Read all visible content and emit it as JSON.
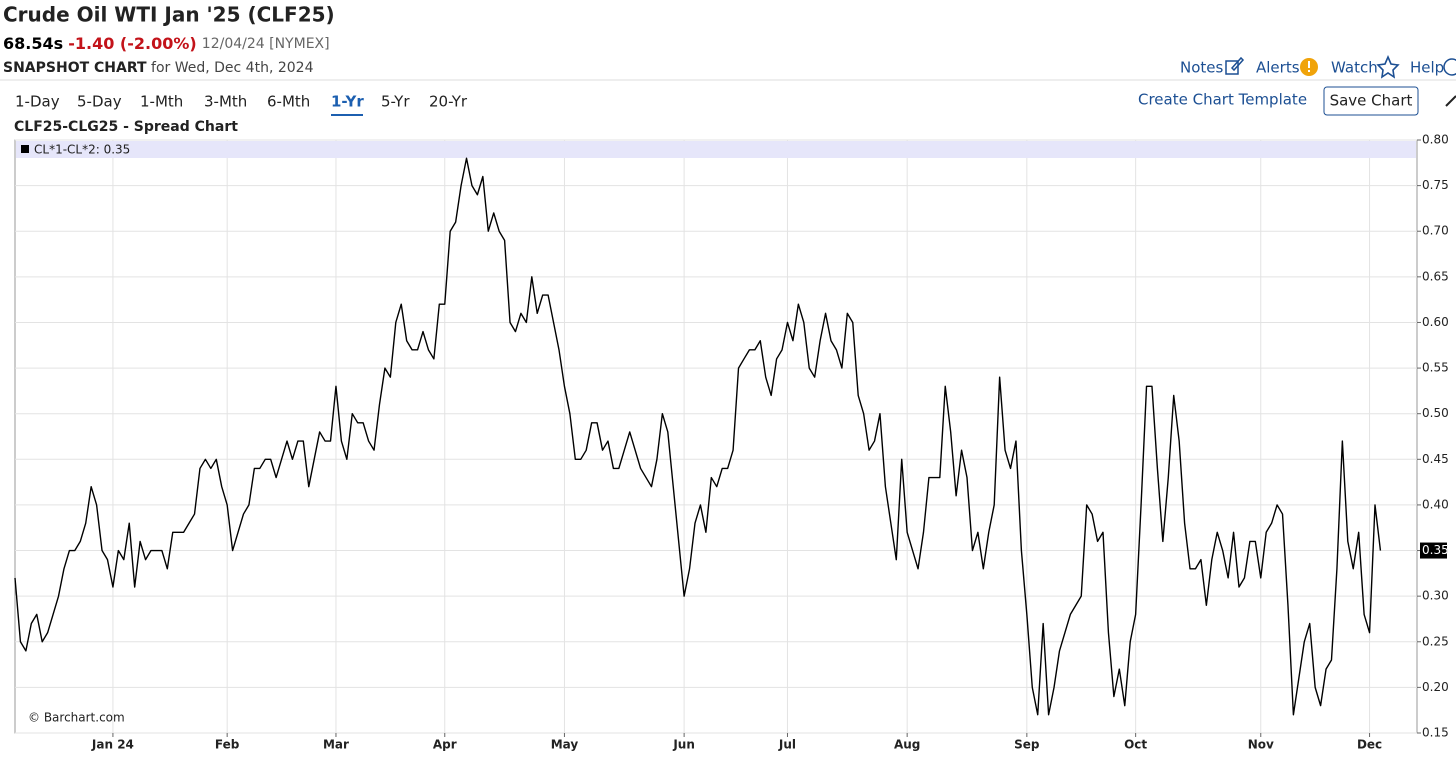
{
  "header": {
    "title": "Crude Oil WTI Jan '25 (CLF25)",
    "last": "68.54s",
    "change": "-1.40 (-2.00%)",
    "quote_date": "12/04/24 [NYMEX]",
    "snapshot_label": "SNAPSHOT CHART",
    "snapshot_date": "for Wed, Dec 4th, 2024"
  },
  "links": [
    "Notes",
    "Alerts",
    "Watch",
    "Help"
  ],
  "tabs": [
    "1-Day",
    "5-Day",
    "1-Mth",
    "3-Mth",
    "6-Mth",
    "1-Yr",
    "5-Yr",
    "20-Yr"
  ],
  "buttons": {
    "template": "Create Chart Template",
    "save": "Save Chart"
  },
  "chart_data": {
    "type": "line",
    "title": "CLF25-CLG25 - Spread Chart",
    "credit": "© Barchart.com",
    "grid": true,
    "legend": "top-left",
    "ylim": [
      0.15,
      0.8
    ],
    "yticks": [
      0.15,
      {
        "value": 0.2,
        "label": "0.20"
      },
      0.25,
      {
        "value": 0.3,
        "label": "0.30"
      },
      0.35,
      {
        "value": 0.4,
        "label": "0.40"
      },
      0.45,
      {
        "value": 0.5,
        "label": "0.50"
      },
      0.55,
      {
        "value": 0.6,
        "label": "0.60"
      },
      0.65,
      {
        "value": 0.7,
        "label": "0.70"
      },
      0.75,
      {
        "value": 0.8,
        "label": "0.80"
      }
    ],
    "categories": [
      null,
      null,
      null,
      null,
      null,
      null,
      null,
      null,
      null,
      null,
      null,
      null,
      null,
      null,
      null,
      null,
      null,
      null,
      "Jan 24",
      null,
      null,
      null,
      null,
      null,
      null,
      null,
      null,
      null,
      null,
      null,
      null,
      null,
      null,
      null,
      null,
      null,
      null,
      null,
      null,
      "Feb",
      null,
      null,
      null,
      null,
      null,
      null,
      null,
      null,
      null,
      null,
      null,
      null,
      null,
      null,
      null,
      null,
      null,
      null,
      null,
      "Mar",
      null,
      null,
      null,
      null,
      null,
      null,
      null,
      null,
      null,
      null,
      null,
      null,
      null,
      null,
      null,
      null,
      null,
      null,
      null,
      "Apr",
      null,
      null,
      null,
      null,
      null,
      null,
      null,
      null,
      null,
      null,
      null,
      null,
      null,
      null,
      null,
      null,
      null,
      null,
      null,
      null,
      null,
      "May",
      null,
      null,
      null,
      null,
      null,
      null,
      null,
      null,
      null,
      null,
      null,
      null,
      null,
      null,
      null,
      null,
      null,
      null,
      null,
      null,
      null,
      "Jun",
      null,
      null,
      null,
      null,
      null,
      null,
      null,
      null,
      null,
      null,
      null,
      null,
      null,
      null,
      null,
      null,
      null,
      null,
      "Jul",
      null,
      null,
      null,
      null,
      null,
      null,
      null,
      null,
      null,
      null,
      null,
      null,
      null,
      null,
      null,
      null,
      null,
      null,
      null,
      null,
      null,
      "Aug",
      null,
      null,
      null,
      null,
      null,
      null,
      null,
      null,
      null,
      null,
      null,
      null,
      null,
      null,
      null,
      null,
      null,
      null,
      null,
      null,
      null,
      "Sep",
      null,
      null,
      null,
      null,
      null,
      null,
      null,
      null,
      null,
      null,
      null,
      null,
      null,
      null,
      null,
      null,
      null,
      null,
      null,
      "Oct",
      null,
      null,
      null,
      null,
      null,
      null,
      null,
      null,
      null,
      null,
      null,
      null,
      null,
      null,
      null,
      null,
      null,
      null,
      null,
      null,
      null,
      null,
      "Nov",
      null,
      null,
      null,
      null,
      null,
      null,
      null,
      null,
      null,
      null,
      null,
      null,
      null,
      null,
      null,
      null,
      null,
      null,
      null,
      "Dec",
      null,
      null
    ],
    "series": [
      {
        "name": "CL*1-CL*2: 0.35",
        "color": "#000000",
        "values": [
          0.32,
          0.25,
          0.24,
          0.27,
          0.28,
          0.25,
          0.26,
          0.28,
          0.3,
          0.33,
          0.35,
          0.35,
          0.36,
          0.38,
          0.42,
          0.4,
          0.35,
          0.34,
          0.31,
          0.35,
          0.34,
          0.38,
          0.31,
          0.36,
          0.34,
          0.35,
          0.35,
          0.35,
          0.33,
          0.37,
          0.37,
          0.37,
          0.38,
          0.39,
          0.44,
          0.45,
          0.44,
          0.45,
          0.42,
          0.4,
          0.35,
          0.37,
          0.39,
          0.4,
          0.44,
          0.44,
          0.45,
          0.45,
          0.43,
          0.45,
          0.47,
          0.45,
          0.47,
          0.47,
          0.42,
          0.45,
          0.48,
          0.47,
          0.47,
          0.53,
          0.47,
          0.45,
          0.5,
          0.49,
          0.49,
          0.47,
          0.46,
          0.51,
          0.55,
          0.54,
          0.6,
          0.62,
          0.58,
          0.57,
          0.57,
          0.59,
          0.57,
          0.56,
          0.62,
          0.62,
          0.7,
          0.71,
          0.75,
          0.78,
          0.75,
          0.74,
          0.76,
          0.7,
          0.72,
          0.7,
          0.69,
          0.6,
          0.59,
          0.61,
          0.6,
          0.65,
          0.61,
          0.63,
          0.63,
          0.6,
          0.57,
          0.53,
          0.5,
          0.45,
          0.45,
          0.46,
          0.49,
          0.49,
          0.46,
          0.47,
          0.44,
          0.44,
          0.46,
          0.48,
          0.46,
          0.44,
          0.43,
          0.42,
          0.45,
          0.5,
          0.48,
          0.42,
          0.36,
          0.3,
          0.33,
          0.38,
          0.4,
          0.37,
          0.43,
          0.42,
          0.44,
          0.44,
          0.46,
          0.55,
          0.56,
          0.57,
          0.57,
          0.58,
          0.54,
          0.52,
          0.56,
          0.57,
          0.6,
          0.58,
          0.62,
          0.6,
          0.55,
          0.54,
          0.58,
          0.61,
          0.58,
          0.57,
          0.55,
          0.61,
          0.6,
          0.52,
          0.5,
          0.46,
          0.47,
          0.5,
          0.42,
          0.38,
          0.34,
          0.45,
          0.37,
          0.35,
          0.33,
          0.37,
          0.43,
          0.43,
          0.43,
          0.53,
          0.48,
          0.41,
          0.46,
          0.43,
          0.35,
          0.37,
          0.33,
          0.37,
          0.4,
          0.54,
          0.46,
          0.44,
          0.47,
          0.35,
          0.28,
          0.2,
          0.17,
          0.27,
          0.17,
          0.2,
          0.24,
          0.26,
          0.28,
          0.29,
          0.3,
          0.4,
          0.39,
          0.36,
          0.37,
          0.26,
          0.19,
          0.22,
          0.18,
          0.25,
          0.28,
          0.4,
          0.53,
          0.53,
          0.44,
          0.36,
          0.43,
          0.52,
          0.47,
          0.38,
          0.33,
          0.33,
          0.34,
          0.29,
          0.34,
          0.37,
          0.35,
          0.32,
          0.37,
          0.31,
          0.32,
          0.36,
          0.36,
          0.32,
          0.37,
          0.38,
          0.4,
          0.39,
          0.29,
          0.17,
          0.21,
          0.25,
          0.27,
          0.2,
          0.18,
          0.22,
          0.23,
          0.33,
          0.47,
          0.36,
          0.33,
          0.37,
          0.28,
          0.26,
          0.4,
          0.35
        ]
      }
    ]
  }
}
